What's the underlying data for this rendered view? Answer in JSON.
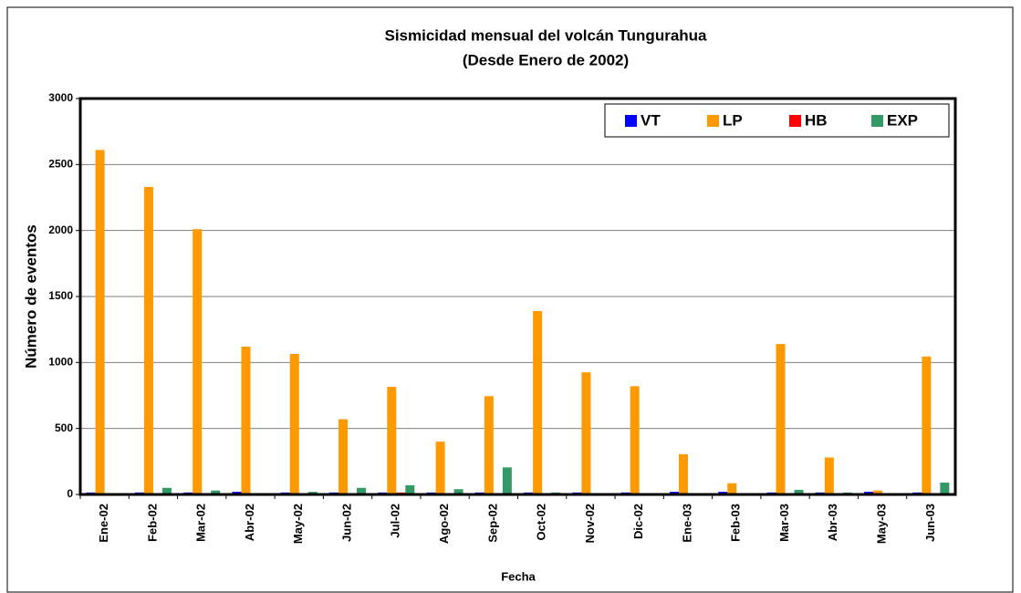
{
  "chart_data": {
    "type": "bar",
    "title": "Sismicidad mensual del volcán Tungurahua",
    "subtitle": "(Desde Enero de 2002)",
    "x_label": "Fecha",
    "y_label": "Número de eventos",
    "categories": [
      "Ene-02",
      "Feb-02",
      "Mar-02",
      "Abr-02",
      "May-02",
      "Jun-02",
      "Jul-02",
      "Ago-02",
      "Sep-02",
      "Oct-02",
      "Nov-02",
      "Dic-02",
      "Ene-03",
      "Feb-03",
      "Mar-03",
      "Abr-03",
      "May-03",
      "Jun-03"
    ],
    "series": [
      {
        "name": "VT",
        "color": "#0000ff",
        "values": [
          15,
          15,
          15,
          20,
          15,
          15,
          15,
          15,
          15,
          15,
          15,
          15,
          20,
          20,
          15,
          15,
          20,
          15
        ]
      },
      {
        "name": "LP",
        "color": "#ff9900",
        "values": [
          2610,
          2330,
          2010,
          1120,
          1065,
          570,
          815,
          400,
          745,
          1390,
          925,
          820,
          305,
          85,
          1140,
          280,
          30,
          1045
        ]
      },
      {
        "name": "HB",
        "color": "#ff0000",
        "values": [
          5,
          5,
          5,
          5,
          5,
          5,
          15,
          5,
          5,
          5,
          5,
          5,
          5,
          5,
          5,
          5,
          5,
          5
        ]
      },
      {
        "name": "EXP",
        "color": "#339966",
        "values": [
          5,
          50,
          30,
          10,
          20,
          50,
          70,
          40,
          205,
          15,
          10,
          5,
          5,
          5,
          35,
          15,
          5,
          90
        ]
      }
    ],
    "ylim": [
      0,
      3000
    ],
    "yticks": [
      0,
      500,
      1000,
      1500,
      2000,
      2500,
      3000
    ],
    "grid": true,
    "legend": "upper right"
  }
}
